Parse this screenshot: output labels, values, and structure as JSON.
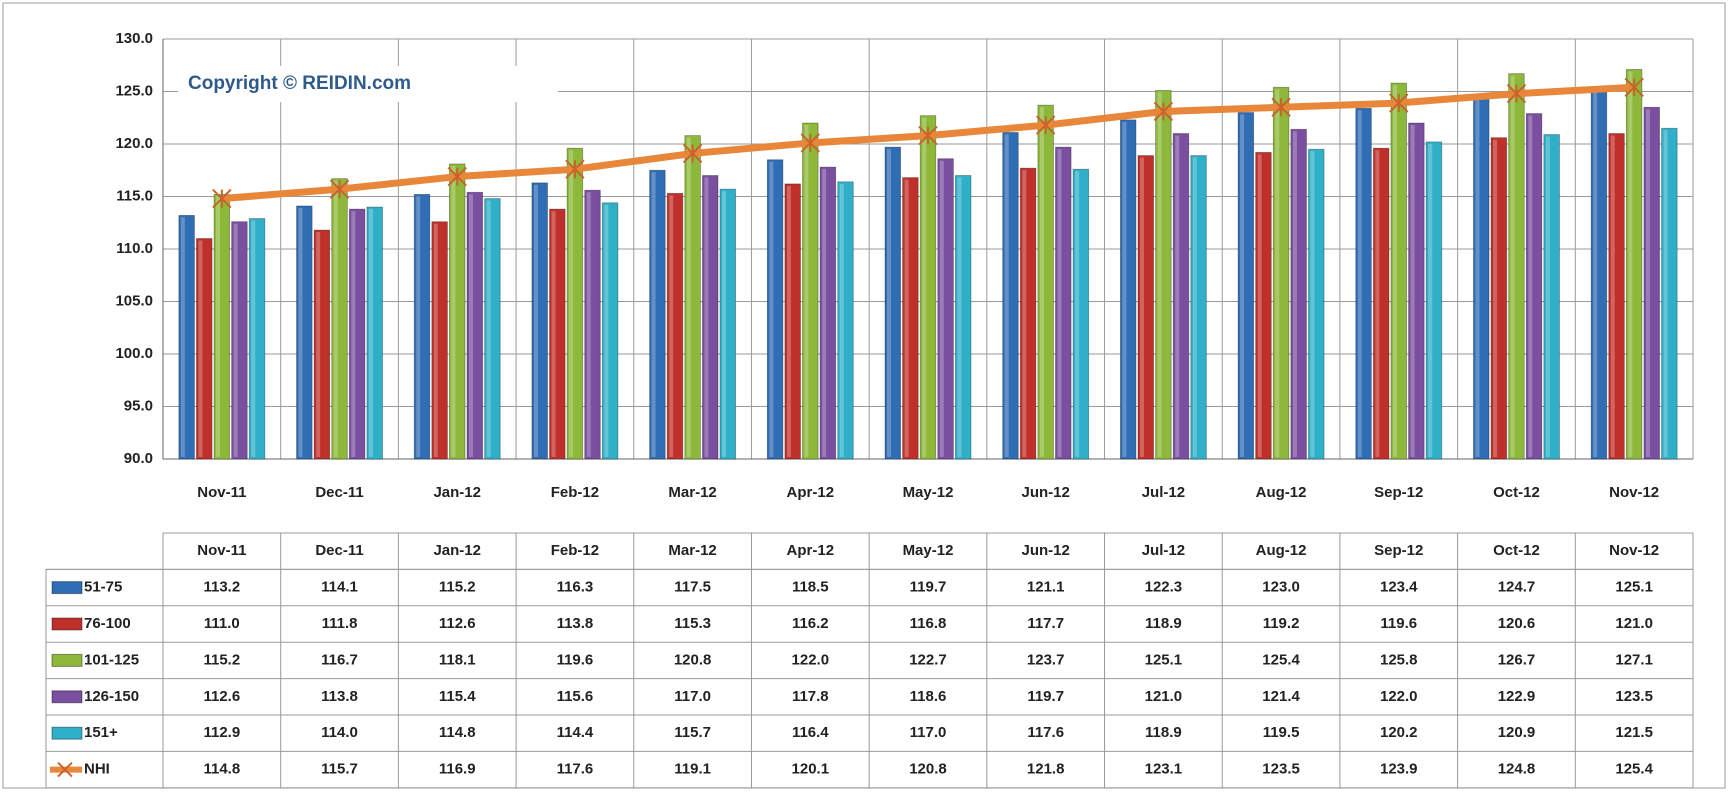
{
  "chart_data": {
    "type": "bar",
    "annotation": "Copyright © REIDIN.com",
    "categories": [
      "Nov-11",
      "Dec-11",
      "Jan-12",
      "Feb-12",
      "Mar-12",
      "Apr-12",
      "May-12",
      "Jun-12",
      "Jul-12",
      "Aug-12",
      "Sep-12",
      "Oct-12",
      "Nov-12"
    ],
    "ylim": [
      90,
      130
    ],
    "yticks": [
      {
        "value": 90,
        "label": "90.0"
      },
      {
        "value": 95,
        "label": "95.0"
      },
      {
        "value": 100,
        "label": "100.0"
      },
      {
        "value": 105,
        "label": "105.0"
      },
      {
        "value": 110,
        "label": "110.0"
      },
      {
        "value": 115,
        "label": "115.0"
      },
      {
        "value": 120,
        "label": "120.0"
      },
      {
        "value": 125,
        "label": "125.0"
      },
      {
        "value": 130,
        "label": "130.0"
      }
    ],
    "grid": true,
    "series": [
      {
        "name": "51-75",
        "color": "#2f6db5",
        "values": [
          113.2,
          114.1,
          115.2,
          116.3,
          117.5,
          118.5,
          119.7,
          121.1,
          122.3,
          123.0,
          123.4,
          124.7,
          125.1
        ],
        "value_labels": [
          "113.2",
          "114.1",
          "115.2",
          "116.3",
          "117.5",
          "118.5",
          "119.7",
          "121.1",
          "122.3",
          "123.0",
          "123.4",
          "124.7",
          "125.1"
        ]
      },
      {
        "name": "76-100",
        "color": "#c0302a",
        "values": [
          111.0,
          111.8,
          112.6,
          113.8,
          115.3,
          116.2,
          116.8,
          117.7,
          118.9,
          119.2,
          119.6,
          120.6,
          121.0
        ],
        "value_labels": [
          "111.0",
          "111.8",
          "112.6",
          "113.8",
          "115.3",
          "116.2",
          "116.8",
          "117.7",
          "118.9",
          "119.2",
          "119.6",
          "120.6",
          "121.0"
        ]
      },
      {
        "name": "101-125",
        "color": "#8db83a",
        "values": [
          115.2,
          116.7,
          118.1,
          119.6,
          120.8,
          122.0,
          122.7,
          123.7,
          125.1,
          125.4,
          125.8,
          126.7,
          127.1
        ],
        "value_labels": [
          "115.2",
          "116.7",
          "118.1",
          "119.6",
          "120.8",
          "122.0",
          "122.7",
          "123.7",
          "125.1",
          "125.4",
          "125.8",
          "126.7",
          "127.1"
        ]
      },
      {
        "name": "126-150",
        "color": "#7a4fa0",
        "values": [
          112.6,
          113.8,
          115.4,
          115.6,
          117.0,
          117.8,
          118.6,
          119.7,
          121.0,
          121.4,
          122.0,
          122.9,
          123.5
        ],
        "value_labels": [
          "112.6",
          "113.8",
          "115.4",
          "115.6",
          "117.0",
          "117.8",
          "118.6",
          "119.7",
          "121.0",
          "121.4",
          "122.0",
          "122.9",
          "123.5"
        ]
      },
      {
        "name": "151+",
        "color": "#2fb0c8",
        "values": [
          112.9,
          114.0,
          114.8,
          114.4,
          115.7,
          116.4,
          117.0,
          117.6,
          118.9,
          119.5,
          120.2,
          120.9,
          121.5
        ],
        "value_labels": [
          "112.9",
          "114.0",
          "114.8",
          "114.4",
          "115.7",
          "116.4",
          "117.0",
          "117.6",
          "118.9",
          "119.5",
          "120.2",
          "120.9",
          "121.5"
        ]
      },
      {
        "name": "NHI",
        "type": "line",
        "color": "#e8873a",
        "values": [
          114.8,
          115.7,
          116.9,
          117.6,
          119.1,
          120.1,
          120.8,
          121.8,
          123.1,
          123.5,
          123.9,
          124.8,
          125.4
        ],
        "value_labels": [
          "114.8",
          "115.7",
          "116.9",
          "117.6",
          "119.1",
          "120.1",
          "120.8",
          "121.8",
          "123.1",
          "123.5",
          "123.9",
          "124.8",
          "125.4"
        ]
      }
    ]
  }
}
